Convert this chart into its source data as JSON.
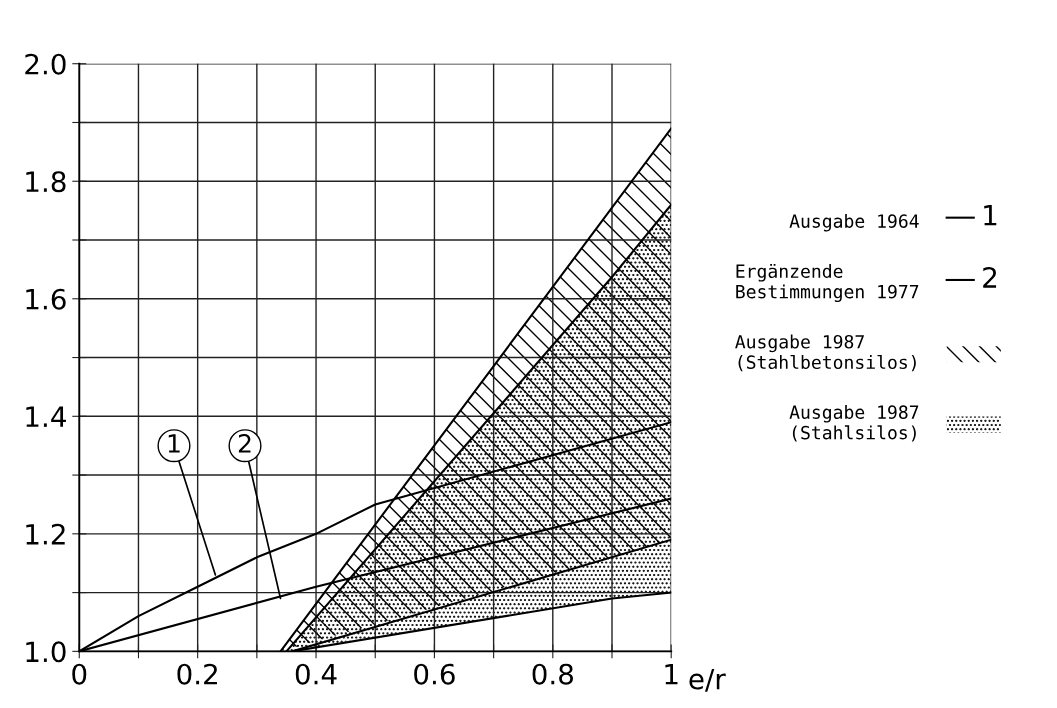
{
  "chart_data": {
    "type": "line",
    "xlabel": "e/r",
    "xlim": [
      0,
      1
    ],
    "ylim": [
      1,
      2
    ],
    "xticks": [
      0,
      {
        "value": 0.1,
        "label": null
      },
      0.2,
      {
        "value": 0.3,
        "label": null
      },
      0.4,
      {
        "value": 0.5,
        "label": null
      },
      0.6,
      {
        "value": 0.7,
        "label": null
      },
      0.8,
      {
        "value": 0.9,
        "label": null
      },
      1
    ],
    "yticks": [
      {
        "value": 1,
        "label": "1.0"
      },
      {
        "value": 1.1,
        "label": null
      },
      1.2,
      {
        "value": 1.3,
        "label": null
      },
      1.4,
      {
        "value": 1.5,
        "label": null
      },
      1.6,
      {
        "value": 1.7,
        "label": null
      },
      1.8,
      {
        "value": 1.9,
        "label": null
      },
      {
        "value": 2,
        "label": "2.0"
      }
    ],
    "grid": true,
    "legend": "right",
    "series": [
      {
        "name": "Ausgabe 1964",
        "color": "#000000",
        "x": [
          0,
          0.1,
          0.2,
          0.3,
          0.4,
          0.5,
          1.0
        ],
        "values": [
          1.0,
          1.06,
          1.11,
          1.16,
          1.2,
          1.25,
          1.39
        ]
      },
      {
        "name": "Ergänzende\nBestimmungen 1977",
        "color": "#000000",
        "x": [
          0,
          0.4,
          1.0
        ],
        "values": [
          1.0,
          1.11,
          1.26
        ]
      },
      {
        "color": "#000000",
        "x": [
          0.36,
          1.0
        ],
        "values": [
          1.0,
          1.19
        ]
      },
      {
        "name": "Ausgabe 1987\n(Stahlbetonsilos)",
        "type": "area",
        "color": "#000000",
        "x": [
          0.34,
          1.0
        ],
        "values": [
          1.0,
          1.89
        ]
      },
      {
        "color": "#000000",
        "x": [
          0.36,
          0.9,
          1.0
        ],
        "values": [
          1.0,
          1.09,
          1.1
        ]
      },
      {
        "name": "Ausgabe 1987\n(Stahlsilos)",
        "type": "area",
        "color": "#000000",
        "x": [
          0.35,
          0.9,
          1.0
        ],
        "values": [
          1.0,
          1.637,
          1.76
        ]
      }
    ],
    "annotations": [
      {
        "text": "1",
        "x": 0.23,
        "y": 1.13
      },
      {
        "text": "2",
        "x": 0.34,
        "y": 1.09
      }
    ]
  }
}
